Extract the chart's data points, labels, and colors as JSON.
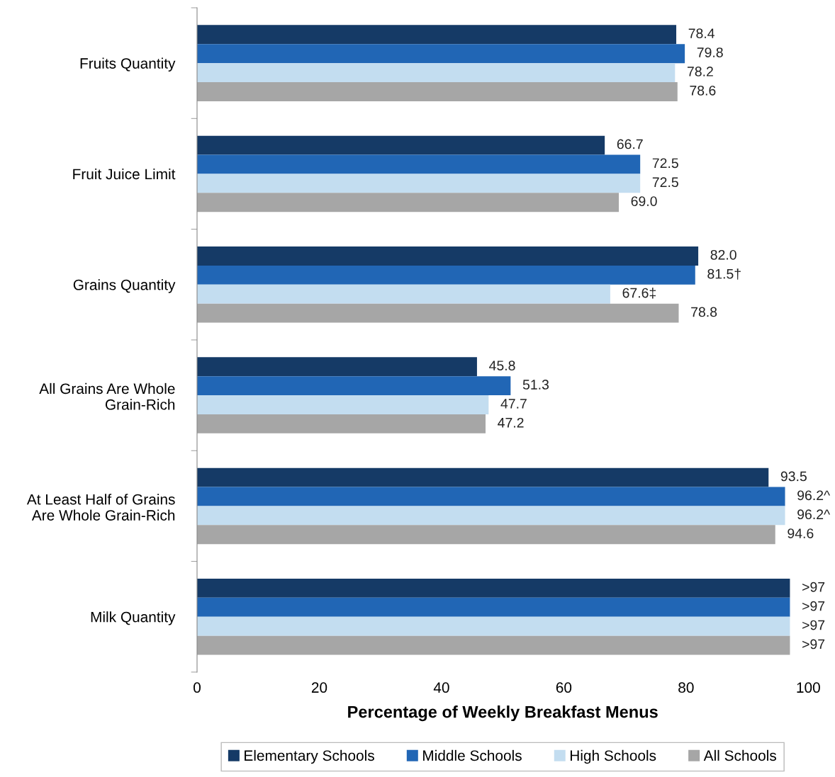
{
  "chart_data": {
    "type": "bar",
    "orientation": "horizontal",
    "xlabel": "Percentage of Weekly Breakfast Menus",
    "categories": [
      "Fruits Quantity",
      "Fruit Juice Limit",
      "Grains Quantity",
      "All Grains Are Whole\nGrain-Rich",
      "At Least Half of Grains\nAre Whole Grain-Rich",
      "Milk Quantity"
    ],
    "series": [
      {
        "name": "Elementary Schools",
        "color": "#153a66",
        "values": [
          78.4,
          66.7,
          82.0,
          45.8,
          93.5,
          97
        ],
        "value_labels": [
          "78.4",
          "66.7",
          "82.0",
          "45.8",
          "93.5",
          ">97"
        ]
      },
      {
        "name": "Middle Schools",
        "color": "#2166b5",
        "values": [
          79.8,
          72.5,
          81.5,
          51.3,
          96.2,
          97
        ],
        "value_labels": [
          "79.8",
          "72.5",
          "81.5†",
          "51.3",
          "96.2^",
          ">97"
        ]
      },
      {
        "name": "High Schools",
        "color": "#c3ddf0",
        "values": [
          78.2,
          72.5,
          67.6,
          47.7,
          96.2,
          97
        ],
        "value_labels": [
          "78.2",
          "72.5",
          "67.6‡",
          "47.7",
          "96.2^",
          ">97"
        ]
      },
      {
        "name": "All Schools",
        "color": "#a6a6a6",
        "values": [
          78.6,
          69.0,
          78.8,
          47.2,
          94.6,
          97
        ],
        "value_labels": [
          "78.6",
          "69.0",
          "78.8",
          "47.2",
          "94.6",
          ">97"
        ]
      }
    ],
    "xlim": [
      0,
      100
    ],
    "xticks": [
      0,
      20,
      40,
      60,
      80,
      100
    ],
    "grid": false,
    "legend": "bottom"
  }
}
